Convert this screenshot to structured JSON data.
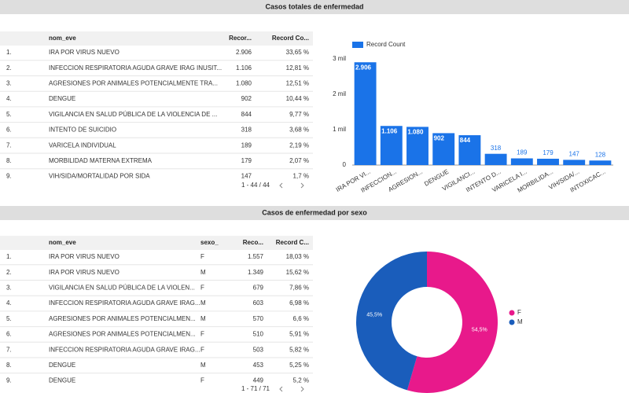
{
  "sections": [
    "Casos totales de enfermedad",
    "Casos de enfermedad por sexo"
  ],
  "tables": [
    {
      "columns": [
        "nom_eve",
        "Recor...",
        "Record Co..."
      ],
      "rows": [
        [
          "1.",
          "IRA POR VIRUS NUEVO",
          "2.906",
          "33,65 %"
        ],
        [
          "2.",
          "INFECCION RESPIRATORIA AGUDA GRAVE IRAG INUSIT...",
          "1.106",
          "12,81 %"
        ],
        [
          "3.",
          "AGRESIONES POR ANIMALES POTENCIALMENTE TRA...",
          "1.080",
          "12,51 %"
        ],
        [
          "4.",
          "DENGUE",
          "902",
          "10,44 %"
        ],
        [
          "5.",
          "VIGILANCIA EN SALUD PÚBLICA DE LA VIOLENCIA DE ...",
          "844",
          "9,77 %"
        ],
        [
          "6.",
          "INTENTO DE SUICIDIO",
          "318",
          "3,68 %"
        ],
        [
          "7.",
          "VARICELA INDIVIDUAL",
          "189",
          "2,19 %"
        ],
        [
          "8.",
          "MORBILIDAD MATERNA EXTREMA",
          "179",
          "2,07 %"
        ],
        [
          "9.",
          "VIH/SIDA/MORTALIDAD POR SIDA",
          "147",
          "1,7 %"
        ]
      ],
      "pager": "1 - 44 / 44"
    },
    {
      "columns": [
        "nom_eve",
        "sexo_",
        "Reco...",
        "Record C..."
      ],
      "rows": [
        [
          "1.",
          "IRA POR VIRUS NUEVO",
          "F",
          "1.557",
          "18,03 %"
        ],
        [
          "2.",
          "IRA POR VIRUS NUEVO",
          "M",
          "1.349",
          "15,62 %"
        ],
        [
          "3.",
          "VIGILANCIA EN SALUD PÚBLICA DE LA VIOLEN...",
          "F",
          "679",
          "7,86 %"
        ],
        [
          "4.",
          "INFECCION RESPIRATORIA AGUDA GRAVE IRAG...",
          "M",
          "603",
          "6,98 %"
        ],
        [
          "5.",
          "AGRESIONES POR ANIMALES POTENCIALMEN...",
          "M",
          "570",
          "6,6 %"
        ],
        [
          "6.",
          "AGRESIONES POR ANIMALES POTENCIALMEN...",
          "F",
          "510",
          "5,91 %"
        ],
        [
          "7.",
          "INFECCION RESPIRATORIA AGUDA GRAVE IRAG...",
          "F",
          "503",
          "5,82 %"
        ],
        [
          "8.",
          "DENGUE",
          "M",
          "453",
          "5,25 %"
        ],
        [
          "9.",
          "DENGUE",
          "F",
          "449",
          "5,2 %"
        ]
      ],
      "pager": "1 - 71 / 71"
    }
  ],
  "chart_data": [
    {
      "type": "bar",
      "categories": [
        "IRA POR VI...",
        "INFECCION...",
        "AGRESION...",
        "DENGUE",
        "VIGILANCI...",
        "INTENTO D...",
        "VARICELA I...",
        "MORBILIDA...",
        "VIH/SIDA/...",
        "INTOXICAC..."
      ],
      "series": [
        {
          "name": "Record Count",
          "color": "#1a73e8",
          "values": [
            2906,
            1106,
            1080,
            902,
            844,
            318,
            189,
            179,
            147,
            128
          ],
          "value_labels": [
            "2.906",
            "1.106",
            "1.080",
            "902",
            "844",
            "318",
            "189",
            "179",
            "147",
            "128"
          ]
        }
      ],
      "ylim": [
        0,
        3000
      ],
      "yticks": [
        0,
        {
          "value": 1000,
          "label": "1 mil"
        },
        {
          "value": 2000,
          "label": "2 mil"
        },
        {
          "value": 3000,
          "label": "3 mil"
        }
      ],
      "grid": false,
      "legend": "top-left"
    },
    {
      "type": "pie",
      "donut": true,
      "categories": [
        "F",
        "M"
      ],
      "values": [
        54.5,
        45.5
      ],
      "value_labels": [
        "54,5%",
        "45,5%"
      ],
      "colors": [
        "#e8198b",
        "#1a5dbb"
      ],
      "legend": "right"
    }
  ]
}
